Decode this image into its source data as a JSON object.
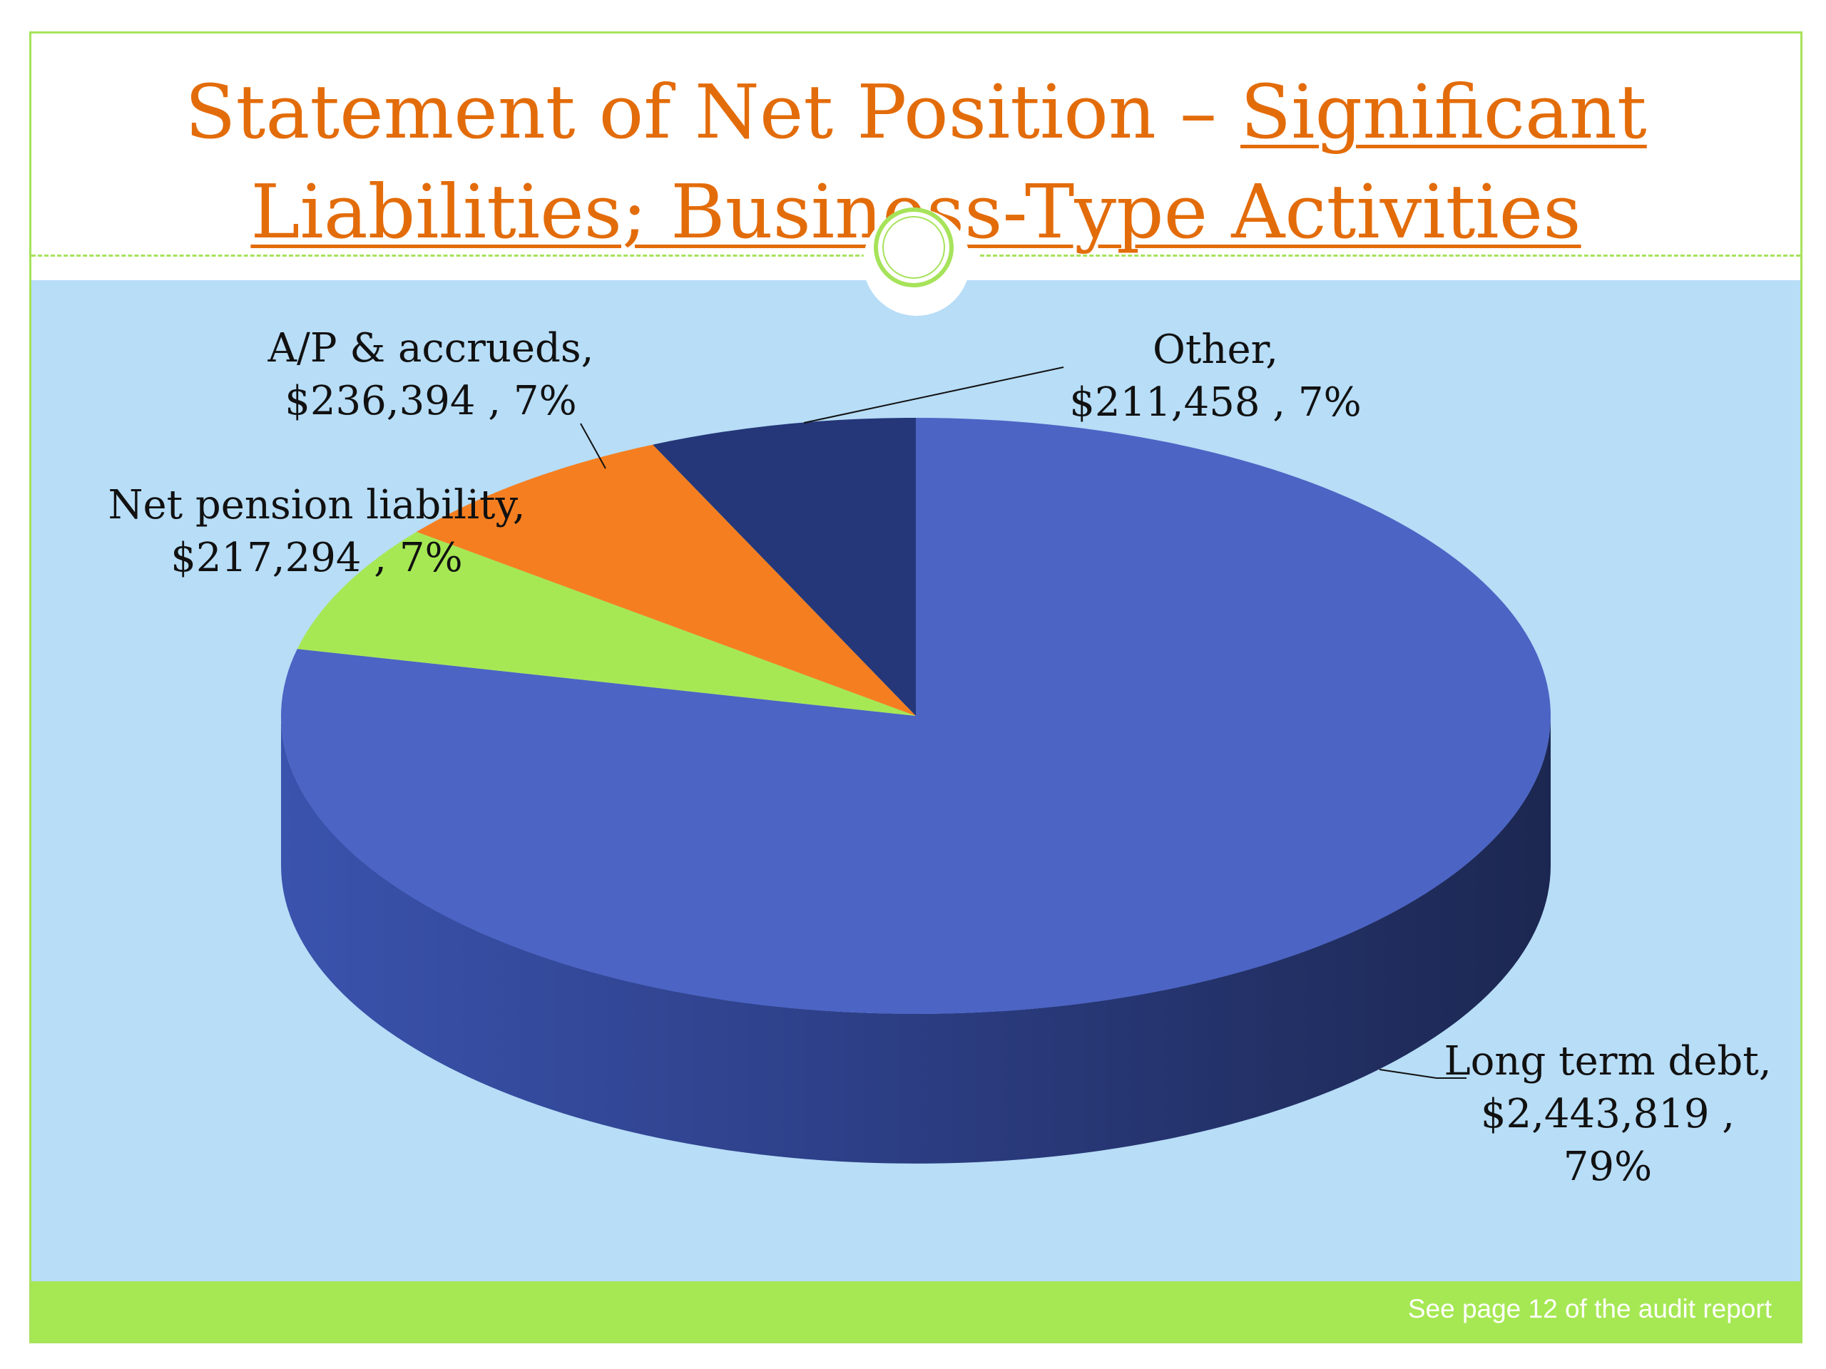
{
  "slide": {
    "title_line1_plain": "Statement of Net Position – ",
    "title_line1_underlined": "Significant",
    "title_line2_underlined": "Liabilities; Business-Type Activities",
    "footer_note": "See page 12 of the audit report"
  },
  "colors": {
    "title": "#e36c0a",
    "accent_green": "#a6e35a",
    "panel_bg": "#b7ddf7"
  },
  "chart_data": {
    "type": "pie",
    "title": "",
    "style": "3d",
    "slices": [
      {
        "label": "Long term debt",
        "value": 2443819,
        "percent": 79,
        "color": "#4c64c4",
        "label_lines": [
          "Long term debt,",
          "$2,443,819 ,",
          "79%"
        ]
      },
      {
        "label": "Net pension liability",
        "value": 217294,
        "percent": 7,
        "color": "#a6e854",
        "label_lines": [
          "Net pension liability,",
          "$217,294 , 7%"
        ]
      },
      {
        "label": "A/P & accrueds",
        "value": 236394,
        "percent": 7,
        "color": "#f57f20",
        "label_lines": [
          "A/P & accrueds,",
          "$236,394 , 7%"
        ]
      },
      {
        "label": "Other",
        "value": 211458,
        "percent": 7,
        "color": "#253778",
        "label_lines": [
          "Other,",
          "$211,458 , 7%"
        ]
      }
    ]
  }
}
